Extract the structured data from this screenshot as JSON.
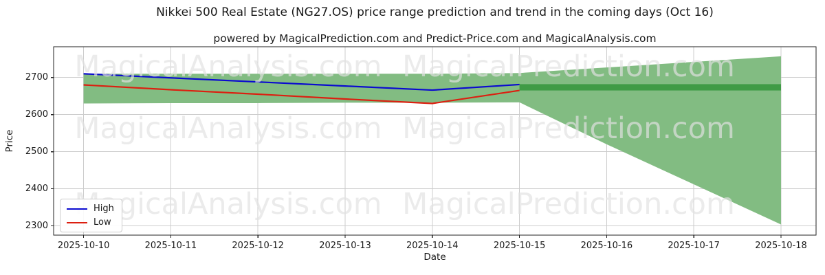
{
  "title": "Nikkei 500 Real Estate (NG27.OS) price range prediction and trend in the coming days (Oct 16)",
  "subtitle": "powered by MagicalPrediction.com and Predict-Price.com and MagicalAnalysis.com",
  "watermarks": {
    "left": "MagicalAnalysis.com",
    "right": "MagicalPrediction.com"
  },
  "axes": {
    "x_label": "Date",
    "y_label": "Price",
    "x_ticks": [
      "2025-10-10",
      "2025-10-11",
      "2025-10-12",
      "2025-10-13",
      "2025-10-14",
      "2025-10-15",
      "2025-10-16",
      "2025-10-17",
      "2025-10-18"
    ],
    "y_ticks": [
      "2700",
      "2600",
      "2500",
      "2400",
      "2300"
    ]
  },
  "legend": [
    {
      "label": "High",
      "color": "#0a0ad0"
    },
    {
      "label": "Low",
      "color": "#dc1f10"
    }
  ],
  "colors": {
    "high_line": "#0a0ad0",
    "low_line": "#dc1f10",
    "band_fill": "#82bc82",
    "trend_band_fill": "#3f9b45",
    "grid": "#cccccc",
    "spine": "#222222",
    "text": "#1a1a1a"
  },
  "chart_data": {
    "type": "line",
    "title": "Nikkei 500 Real Estate (NG27.OS) price range prediction and trend in the coming days (Oct 16)",
    "subtitle": "powered by MagicalPrediction.com and Predict-Price.com and MagicalAnalysis.com",
    "xlabel": "Date",
    "ylabel": "Price",
    "x": [
      "2025-10-10",
      "2025-10-11",
      "2025-10-12",
      "2025-10-13",
      "2025-10-14",
      "2025-10-15",
      "2025-10-16",
      "2025-10-17",
      "2025-10-18"
    ],
    "y_tick_values": [
      2700,
      2600,
      2500,
      2400,
      2300
    ],
    "ylim": [
      2275.2,
      2782.8
    ],
    "grid": true,
    "legend_position": "lower left",
    "series": [
      {
        "name": "High",
        "color": "#0a0ad0",
        "values": [
          2710,
          2699,
          2688,
          2677,
          2666,
          2681,
          null,
          null,
          null
        ]
      },
      {
        "name": "Low",
        "color": "#dc1f10",
        "values": [
          2680,
          2667,
          2655,
          2642,
          2630,
          2665,
          null,
          null,
          null
        ]
      }
    ],
    "prediction_band": {
      "top": [
        2710,
        2710,
        2710,
        2710,
        2710,
        2712,
        2727,
        2742,
        2757
      ],
      "bottom": [
        2630,
        2631,
        2631,
        2632,
        2632,
        2633,
        2520,
        2412,
        2304
      ]
    },
    "trend_band": {
      "from": "2025-10-15",
      "to": "2025-10-18",
      "top": 2682,
      "bottom": 2665
    }
  }
}
